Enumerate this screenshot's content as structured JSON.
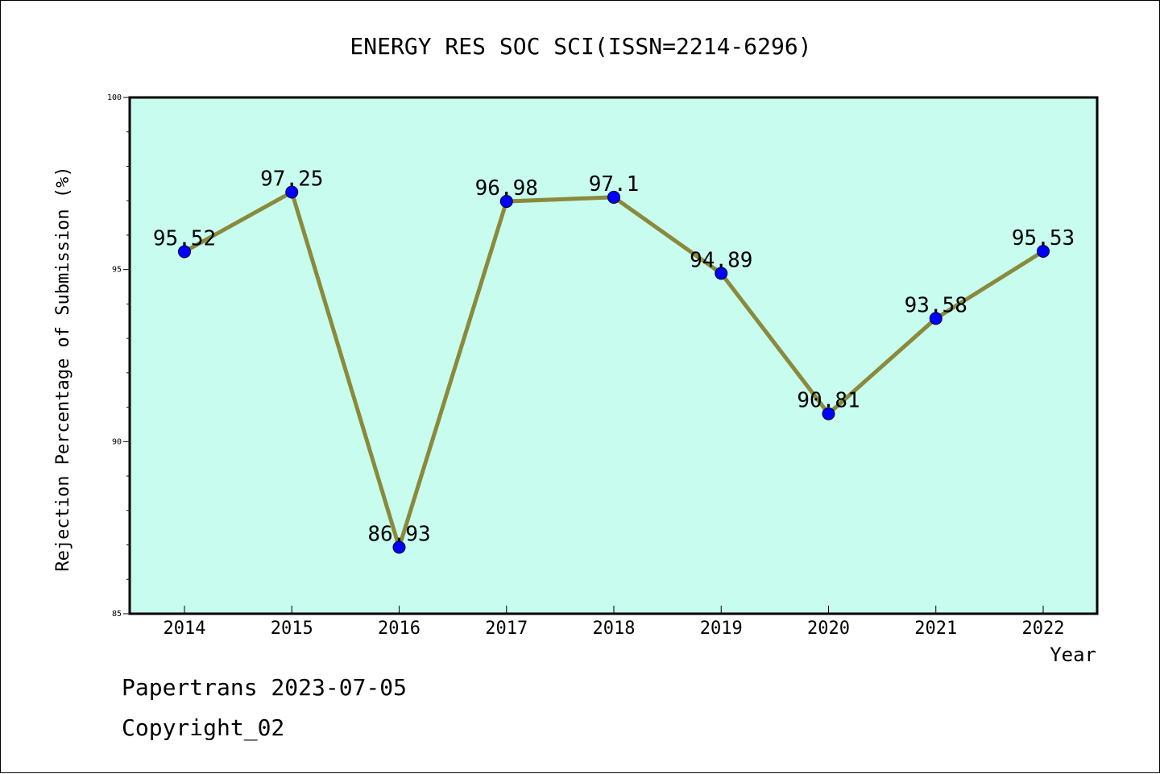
{
  "chart_data": {
    "type": "line",
    "title": "ENERGY RES SOC SCI(ISSN=2214-6296)",
    "xlabel": "Year",
    "ylabel": "Rejection Percentage of Submission (%)",
    "categories": [
      "2014",
      "2015",
      "2016",
      "2017",
      "2018",
      "2019",
      "2020",
      "2021",
      "2022"
    ],
    "values": [
      95.52,
      97.25,
      86.93,
      96.98,
      97.1,
      94.89,
      90.81,
      93.58,
      95.53
    ],
    "data_labels": [
      "95.52",
      "97.25",
      "86.93",
      "96.98",
      "97.1",
      "94.89",
      "90.81",
      "93.58",
      "95.53"
    ],
    "ylim": [
      85,
      100
    ],
    "yticks": [
      "85",
      "90",
      "95",
      "100"
    ],
    "grid": false,
    "legend": "none",
    "colors": {
      "plot_background": "#c8fcee",
      "line": "#8b8a3c",
      "marker": "#0000ff"
    }
  },
  "footer": {
    "source": "Papertrans 2023-07-05",
    "copyright": "Copyright_02"
  }
}
